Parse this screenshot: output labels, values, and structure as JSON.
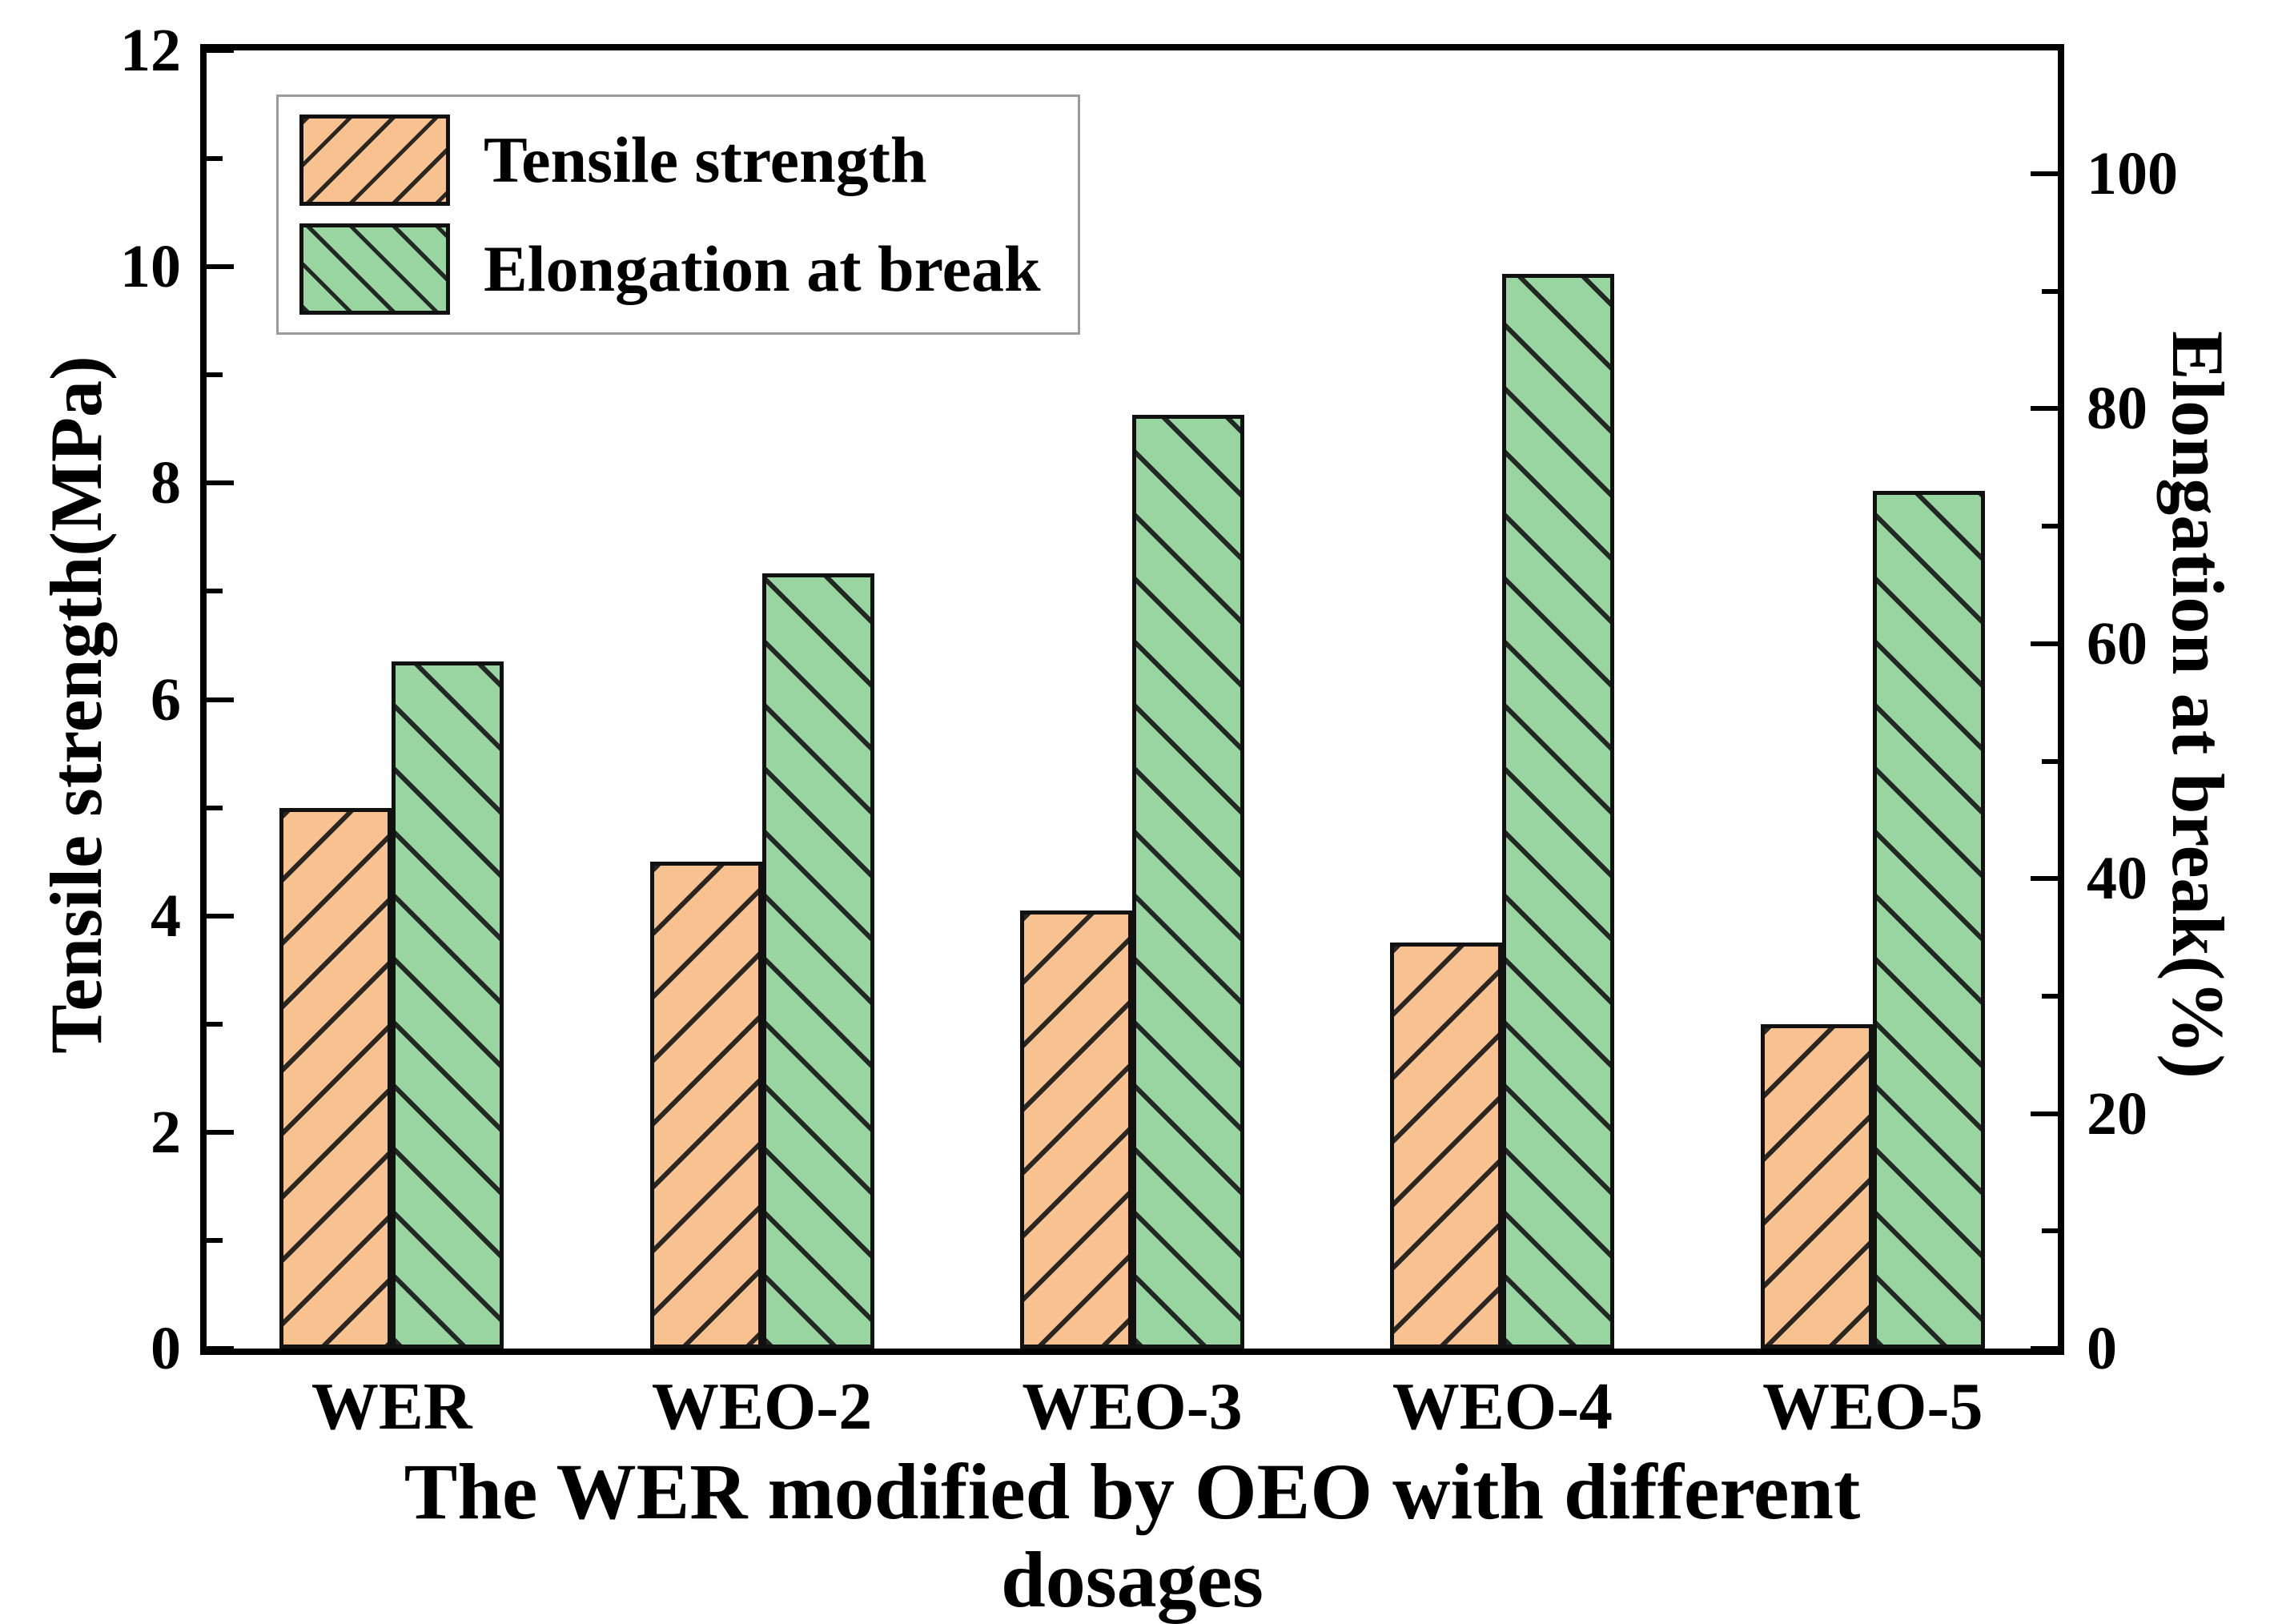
{
  "chart_data": {
    "type": "bar",
    "title": "",
    "xlabel": "The WER modified by OEO with different dosages",
    "ylabel_left": "Tensile strength(MPa)",
    "ylabel_right": "Elongation at break(%)",
    "categories": [
      "WER",
      "WEO-2",
      "WEO-3",
      "WEO-4",
      "WEO-5"
    ],
    "series": [
      {
        "name": "Tensile strength",
        "axis": "left",
        "unit": "MPa",
        "values": [
          5.0,
          4.5,
          4.05,
          3.75,
          3.0
        ]
      },
      {
        "name": "Elongation at break",
        "axis": "right",
        "unit": "%",
        "values": [
          58.5,
          66.0,
          79.5,
          91.5,
          73.0
        ]
      }
    ],
    "ylim_left": [
      0,
      12
    ],
    "ylim_right": [
      0,
      110.5
    ],
    "left_axis_major_ticks": [
      0,
      2,
      4,
      6,
      8,
      10,
      12
    ],
    "left_axis_minor_ticks": [
      1,
      3,
      5,
      7,
      9,
      11
    ],
    "right_axis_major_ticks": [
      0,
      20,
      40,
      60,
      80,
      100
    ],
    "right_axis_minor_ticks": [
      10,
      30,
      50,
      70,
      90
    ],
    "grid": false,
    "legend_position": "upper-left"
  },
  "legend": {
    "items": [
      {
        "label": "Tensile strength",
        "swatch": "orange-diagonal-hatch"
      },
      {
        "label": "Elongation at break",
        "swatch": "green-diagonal-hatch"
      }
    ]
  },
  "colors": {
    "tensile_fill": "#F7C28F",
    "elongation_fill": "#99D5A1",
    "hatch_line": "#191919",
    "axis": "#000000",
    "background": "#FFFFFF"
  }
}
